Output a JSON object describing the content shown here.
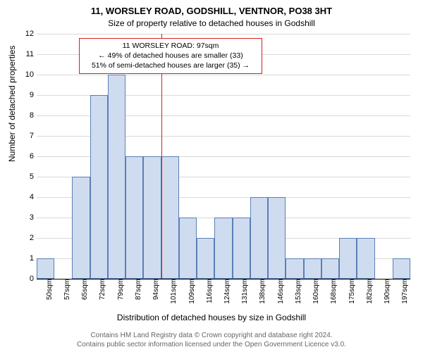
{
  "title_main": "11, WORSLEY ROAD, GODSHILL, VENTNOR, PO38 3HT",
  "title_sub": "Size of property relative to detached houses in Godshill",
  "ylabel": "Number of detached properties",
  "xlabel": "Distribution of detached houses by size in Godshill",
  "attribution_line1": "Contains HM Land Registry data © Crown copyright and database right 2024.",
  "attribution_line2": "Contains public sector information licensed under the Open Government Licence v3.0.",
  "chart": {
    "type": "bar",
    "categories": [
      "50sqm",
      "57sqm",
      "65sqm",
      "72sqm",
      "79sqm",
      "87sqm",
      "94sqm",
      "101sqm",
      "109sqm",
      "116sqm",
      "124sqm",
      "131sqm",
      "138sqm",
      "146sqm",
      "153sqm",
      "160sqm",
      "168sqm",
      "175sqm",
      "182sqm",
      "190sqm",
      "197sqm"
    ],
    "values": [
      1,
      0,
      5,
      9,
      10,
      6,
      6,
      6,
      3,
      2,
      3,
      3,
      4,
      4,
      1,
      1,
      1,
      2,
      2,
      0,
      1
    ],
    "ylim": [
      0,
      12
    ],
    "ytick_step": 1,
    "bar_fill": "#cfdcf0",
    "bar_border": "#5b7fb5",
    "grid_color": "#d9d9d9",
    "background_color": "#ffffff",
    "marker_line_x_index": 7,
    "marker_line_color": "#d42020",
    "title_fontsize": 13,
    "label_fontsize": 12,
    "tick_fontsize": 11
  },
  "annotation": {
    "line1": "11 WORSLEY ROAD: 97sqm",
    "line2": "← 49% of detached houses are smaller (33)",
    "line3": "51% of semi-detached houses are larger (35) →",
    "border_color": "#d42020"
  }
}
